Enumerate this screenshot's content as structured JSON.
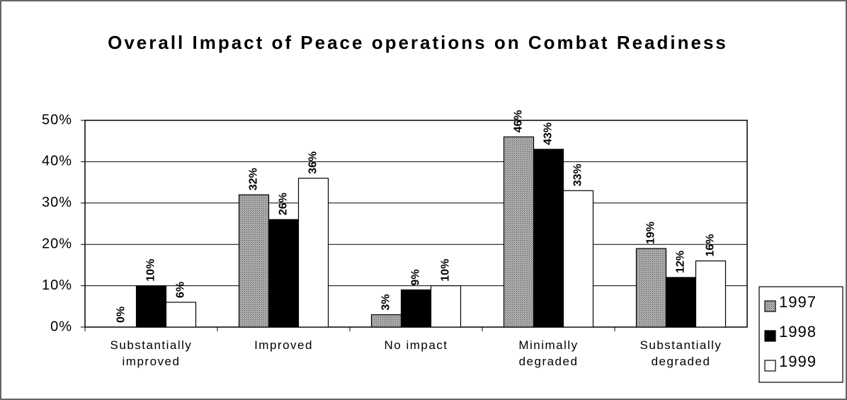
{
  "chart_data": {
    "type": "bar",
    "title": "Overall Impact of Peace operations on Combat Readiness",
    "categories": [
      "Substantially improved",
      "Improved",
      "No impact",
      "Minimally degraded",
      "Substantially degraded"
    ],
    "series": [
      {
        "name": "1997",
        "color": "#9a9a9a",
        "values": [
          0,
          32,
          3,
          46,
          19
        ],
        "value_labels": [
          "0%",
          "32%",
          "3%",
          "46%",
          "19%"
        ]
      },
      {
        "name": "1998",
        "color": "#000000",
        "values": [
          10,
          26,
          9,
          43,
          12
        ],
        "value_labels": [
          "10%",
          "26%",
          "9%",
          "43%",
          "12%"
        ]
      },
      {
        "name": "1999",
        "color": "#ffffff",
        "values": [
          6,
          36,
          10,
          33,
          16
        ],
        "value_labels": [
          "6%",
          "36%",
          "10%",
          "33%",
          "16%"
        ]
      }
    ],
    "ylim": [
      0,
      50
    ],
    "yticks": [
      {
        "value": 0,
        "label": "0%"
      },
      {
        "value": 10,
        "label": "10%"
      },
      {
        "value": 20,
        "label": "20%"
      },
      {
        "value": 30,
        "label": "30%"
      },
      {
        "value": 40,
        "label": "40%"
      },
      {
        "value": 50,
        "label": "50%"
      }
    ],
    "grid": true,
    "legend": "right"
  }
}
